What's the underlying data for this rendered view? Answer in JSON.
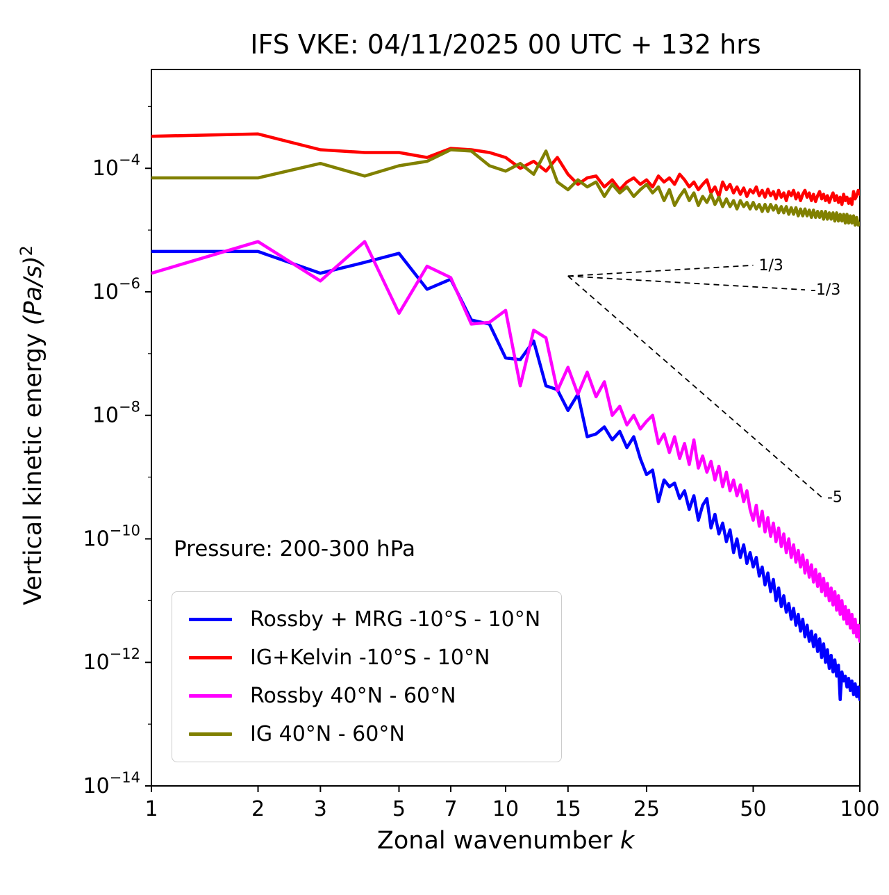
{
  "figure": {
    "title": "IFS VKE: 04/11/2025 00 UTC + 132 hrs",
    "pressure_label": "Pressure: 200-300 hPa"
  },
  "chart_data": {
    "type": "line",
    "x_scale": "log",
    "y_scale": "log",
    "title": "IFS VKE: 04/11/2025 00 UTC + 132 hrs",
    "xlabel": {
      "text": "Zonal wavenumber ",
      "math": "k"
    },
    "ylabel": {
      "text": "Vertical kinetic energy ",
      "math": "(Pa/s)",
      "sup": "2"
    },
    "xlim": [
      1,
      100
    ],
    "ylim_exponents": [
      -14,
      -2.4
    ],
    "xticks": [
      1,
      2,
      3,
      5,
      7,
      10,
      15,
      25,
      50,
      100
    ],
    "ytick_exponents": [
      -4,
      -6,
      -8,
      -10,
      -12,
      -14
    ],
    "grid": false,
    "legend_position": "lower left",
    "x": [
      1,
      2,
      3,
      4,
      5,
      6,
      7,
      8,
      9,
      10,
      11,
      12,
      13,
      14,
      15,
      16,
      17,
      18,
      19,
      20,
      21,
      22,
      23,
      24,
      25,
      26,
      27,
      28,
      29,
      30,
      31,
      32,
      33,
      34,
      35,
      36,
      37,
      38,
      39,
      40,
      41,
      42,
      43,
      44,
      45,
      46,
      47,
      48,
      49,
      50,
      51,
      52,
      53,
      54,
      55,
      56,
      57,
      58,
      59,
      60,
      61,
      62,
      63,
      64,
      65,
      66,
      67,
      68,
      69,
      70,
      71,
      72,
      73,
      74,
      75,
      76,
      77,
      78,
      79,
      80,
      81,
      82,
      83,
      84,
      85,
      86,
      87,
      88,
      89,
      90,
      91,
      92,
      93,
      94,
      95,
      96,
      97,
      98,
      99,
      100
    ],
    "series": [
      {
        "id": "rossby-mrg-tropics",
        "name": "Rossby + MRG -10°S - 10°N",
        "color": "#0000ff",
        "values": [
          4.5e-06,
          4.5e-06,
          2e-06,
          3e-06,
          4.2e-06,
          1.1e-06,
          1.6e-06,
          3.5e-07,
          3e-07,
          8.5e-08,
          8e-08,
          1.6e-07,
          3e-08,
          2.6e-08,
          1.2e-08,
          2.2e-08,
          4.5e-09,
          5e-09,
          6.5e-09,
          4e-09,
          5.5e-09,
          3e-09,
          4.5e-09,
          2e-09,
          1.1e-09,
          1.3e-09,
          4e-10,
          9e-10,
          7e-10,
          8e-10,
          4.5e-10,
          6e-10,
          3e-10,
          5e-10,
          2e-10,
          3.5e-10,
          4.5e-10,
          1.5e-10,
          2.5e-10,
          1.2e-10,
          1.8e-10,
          9e-11,
          1.4e-10,
          6e-11,
          1e-10,
          5e-11,
          8e-11,
          4e-11,
          6e-11,
          3.5e-11,
          5e-11,
          2.5e-11,
          3.5e-11,
          1.8e-11,
          2.8e-11,
          1.4e-11,
          2.2e-11,
          1e-11,
          1.6e-11,
          8e-12,
          1.2e-11,
          6.5e-12,
          9e-12,
          5e-12,
          7.5e-12,
          4e-12,
          6e-12,
          3.2e-12,
          5e-12,
          2.6e-12,
          4e-12,
          2.2e-12,
          3.2e-12,
          1.8e-12,
          2.8e-12,
          1.5e-12,
          2.4e-12,
          1.2e-12,
          2e-12,
          1e-12,
          1.6e-12,
          8e-13,
          1.3e-12,
          7e-13,
          1.1e-12,
          6e-13,
          9e-13,
          2.5e-13,
          7e-13,
          5e-13,
          6e-13,
          4e-13,
          5.5e-13,
          3.5e-13,
          5e-13,
          3e-13,
          4.5e-13,
          2.8e-13,
          4e-13,
          2.5e-13
        ]
      },
      {
        "id": "ig-kelvin-tropics",
        "name": "IG+Kelvin -10°S - 10°N",
        "color": "#ff0000",
        "values": [
          0.00033,
          0.00036,
          0.0002,
          0.00018,
          0.00018,
          0.00015,
          0.00021,
          0.0002,
          0.00018,
          0.00015,
          0.0001,
          0.00013,
          9e-05,
          0.00015,
          8e-05,
          5.5e-05,
          7e-05,
          7.5e-05,
          5e-05,
          6.5e-05,
          4.5e-05,
          6e-05,
          7e-05,
          5.5e-05,
          6.5e-05,
          5e-05,
          7.5e-05,
          6e-05,
          7e-05,
          5.5e-05,
          8e-05,
          6.5e-05,
          5e-05,
          6e-05,
          4.5e-05,
          5.5e-05,
          6.5e-05,
          4e-05,
          5e-05,
          3.5e-05,
          6e-05,
          4.5e-05,
          5.5e-05,
          4e-05,
          5e-05,
          3.8e-05,
          4.8e-05,
          3.5e-05,
          4.5e-05,
          4e-05,
          5e-05,
          3.6e-05,
          4.4e-05,
          3.4e-05,
          4.6e-05,
          3.6e-05,
          4.2e-05,
          3.2e-05,
          4.4e-05,
          3.4e-05,
          4e-05,
          3e-05,
          4.2e-05,
          3.6e-05,
          4.4e-05,
          3.2e-05,
          4e-05,
          3e-05,
          3.8e-05,
          4.4e-05,
          3.4e-05,
          4e-05,
          3e-05,
          3.8e-05,
          2.9e-05,
          3.6e-05,
          4.2e-05,
          3.2e-05,
          3.8e-05,
          3e-05,
          3.6e-05,
          2.8e-05,
          3.4e-05,
          4e-05,
          3e-05,
          3.6e-05,
          2.8e-05,
          3.4e-05,
          2.6e-05,
          3.8e-05,
          3e-05,
          3.4e-05,
          2.7e-05,
          3.2e-05,
          2.6e-05,
          4.2e-05,
          3.2e-05,
          3.6e-05,
          4.4e-05,
          3.8e-05
        ]
      },
      {
        "id": "rossby-midlat",
        "name": "Rossby 40°N - 60°N",
        "color": "#ff00ff",
        "values": [
          2e-06,
          6.5e-06,
          1.5e-06,
          6.5e-06,
          4.5e-07,
          2.6e-06,
          1.7e-06,
          3e-07,
          3.2e-07,
          5e-07,
          3e-08,
          2.4e-07,
          1.8e-07,
          2.5e-08,
          6e-08,
          2.2e-08,
          5e-08,
          2e-08,
          3.5e-08,
          1e-08,
          1.4e-08,
          7e-09,
          1e-08,
          6e-09,
          8e-09,
          1e-08,
          3.5e-09,
          5e-09,
          2.5e-09,
          4.5e-09,
          2e-09,
          3.5e-09,
          1.6e-09,
          4e-09,
          1.4e-09,
          2.2e-09,
          1.2e-09,
          1.8e-09,
          9e-10,
          1.5e-09,
          7e-10,
          1.2e-09,
          6e-10,
          9e-10,
          5e-10,
          7.5e-10,
          4e-10,
          6e-10,
          3e-10,
          2e-10,
          3.5e-10,
          1.6e-10,
          2.8e-10,
          1.3e-10,
          2.2e-10,
          1.1e-10,
          1.8e-10,
          9e-11,
          1.5e-10,
          7.5e-11,
          1.2e-10,
          6e-11,
          1e-10,
          5e-11,
          8e-11,
          4.2e-11,
          6.5e-11,
          3.5e-11,
          5.5e-11,
          2.8e-11,
          4.5e-11,
          2.4e-11,
          3.8e-11,
          2e-11,
          3.2e-11,
          1.7e-11,
          2.7e-11,
          1.4e-11,
          2.3e-11,
          1.2e-11,
          1.9e-11,
          1e-11,
          1.6e-11,
          8.5e-12,
          1.4e-11,
          7e-12,
          1.2e-11,
          6e-12,
          1e-11,
          5e-12,
          8e-12,
          4.2e-12,
          7e-12,
          3.6e-12,
          6e-12,
          3e-12,
          5e-12,
          2.6e-12,
          4e-12,
          2.2e-12
        ]
      },
      {
        "id": "ig-midlat",
        "name": "IG 40°N - 60°N",
        "color": "#808000",
        "values": [
          7e-05,
          7e-05,
          0.00012,
          7.5e-05,
          0.00011,
          0.00013,
          0.0002,
          0.00019,
          0.00011,
          9e-05,
          0.00012,
          8e-05,
          0.00019,
          6e-05,
          4.5e-05,
          6.5e-05,
          5e-05,
          6e-05,
          3.5e-05,
          5.5e-05,
          4e-05,
          5e-05,
          3.5e-05,
          4.5e-05,
          5.5e-05,
          4e-05,
          5e-05,
          3e-05,
          4.5e-05,
          2.5e-05,
          3.5e-05,
          4.5e-05,
          3e-05,
          4e-05,
          2.5e-05,
          3.5e-05,
          2.8e-05,
          3.8e-05,
          2.6e-05,
          3.4e-05,
          2.4e-05,
          3.2e-05,
          2.4e-05,
          3e-05,
          2.2e-05,
          3e-05,
          2.4e-05,
          2.8e-05,
          2.2e-05,
          2.8e-05,
          2.2e-05,
          2.6e-05,
          2e-05,
          2.6e-05,
          2e-05,
          2.6e-05,
          2.1e-05,
          2.5e-05,
          1.9e-05,
          2.4e-05,
          1.9e-05,
          2.4e-05,
          1.8e-05,
          2.3e-05,
          1.8e-05,
          2.3e-05,
          1.7e-05,
          2.2e-05,
          1.7e-05,
          2.2e-05,
          1.7e-05,
          2.1e-05,
          1.6e-05,
          2.1e-05,
          1.6e-05,
          2e-05,
          1.6e-05,
          2e-05,
          1.5e-05,
          2e-05,
          1.5e-05,
          1.9e-05,
          1.5e-05,
          1.9e-05,
          1.4e-05,
          1.9e-05,
          1.4e-05,
          1.8e-05,
          1.4e-05,
          1.8e-05,
          1.3e-05,
          1.8e-05,
          1.3e-05,
          1.7e-05,
          1.3e-05,
          1.7e-05,
          1.2e-05,
          1.6e-05,
          1.2e-05,
          1.3e-05
        ]
      }
    ],
    "reference_lines": [
      {
        "label": "1/3",
        "slope": 0.3333,
        "anchor_x": 15,
        "anchor_y": 1.8e-06,
        "end_x": 50
      },
      {
        "label": "-1/3",
        "slope": -0.3333,
        "anchor_x": 15,
        "anchor_y": 1.8e-06,
        "end_x": 70
      },
      {
        "label": "-5",
        "slope": -5,
        "anchor_x": 15,
        "anchor_y": 1.8e-06,
        "end_x": 78
      }
    ]
  }
}
